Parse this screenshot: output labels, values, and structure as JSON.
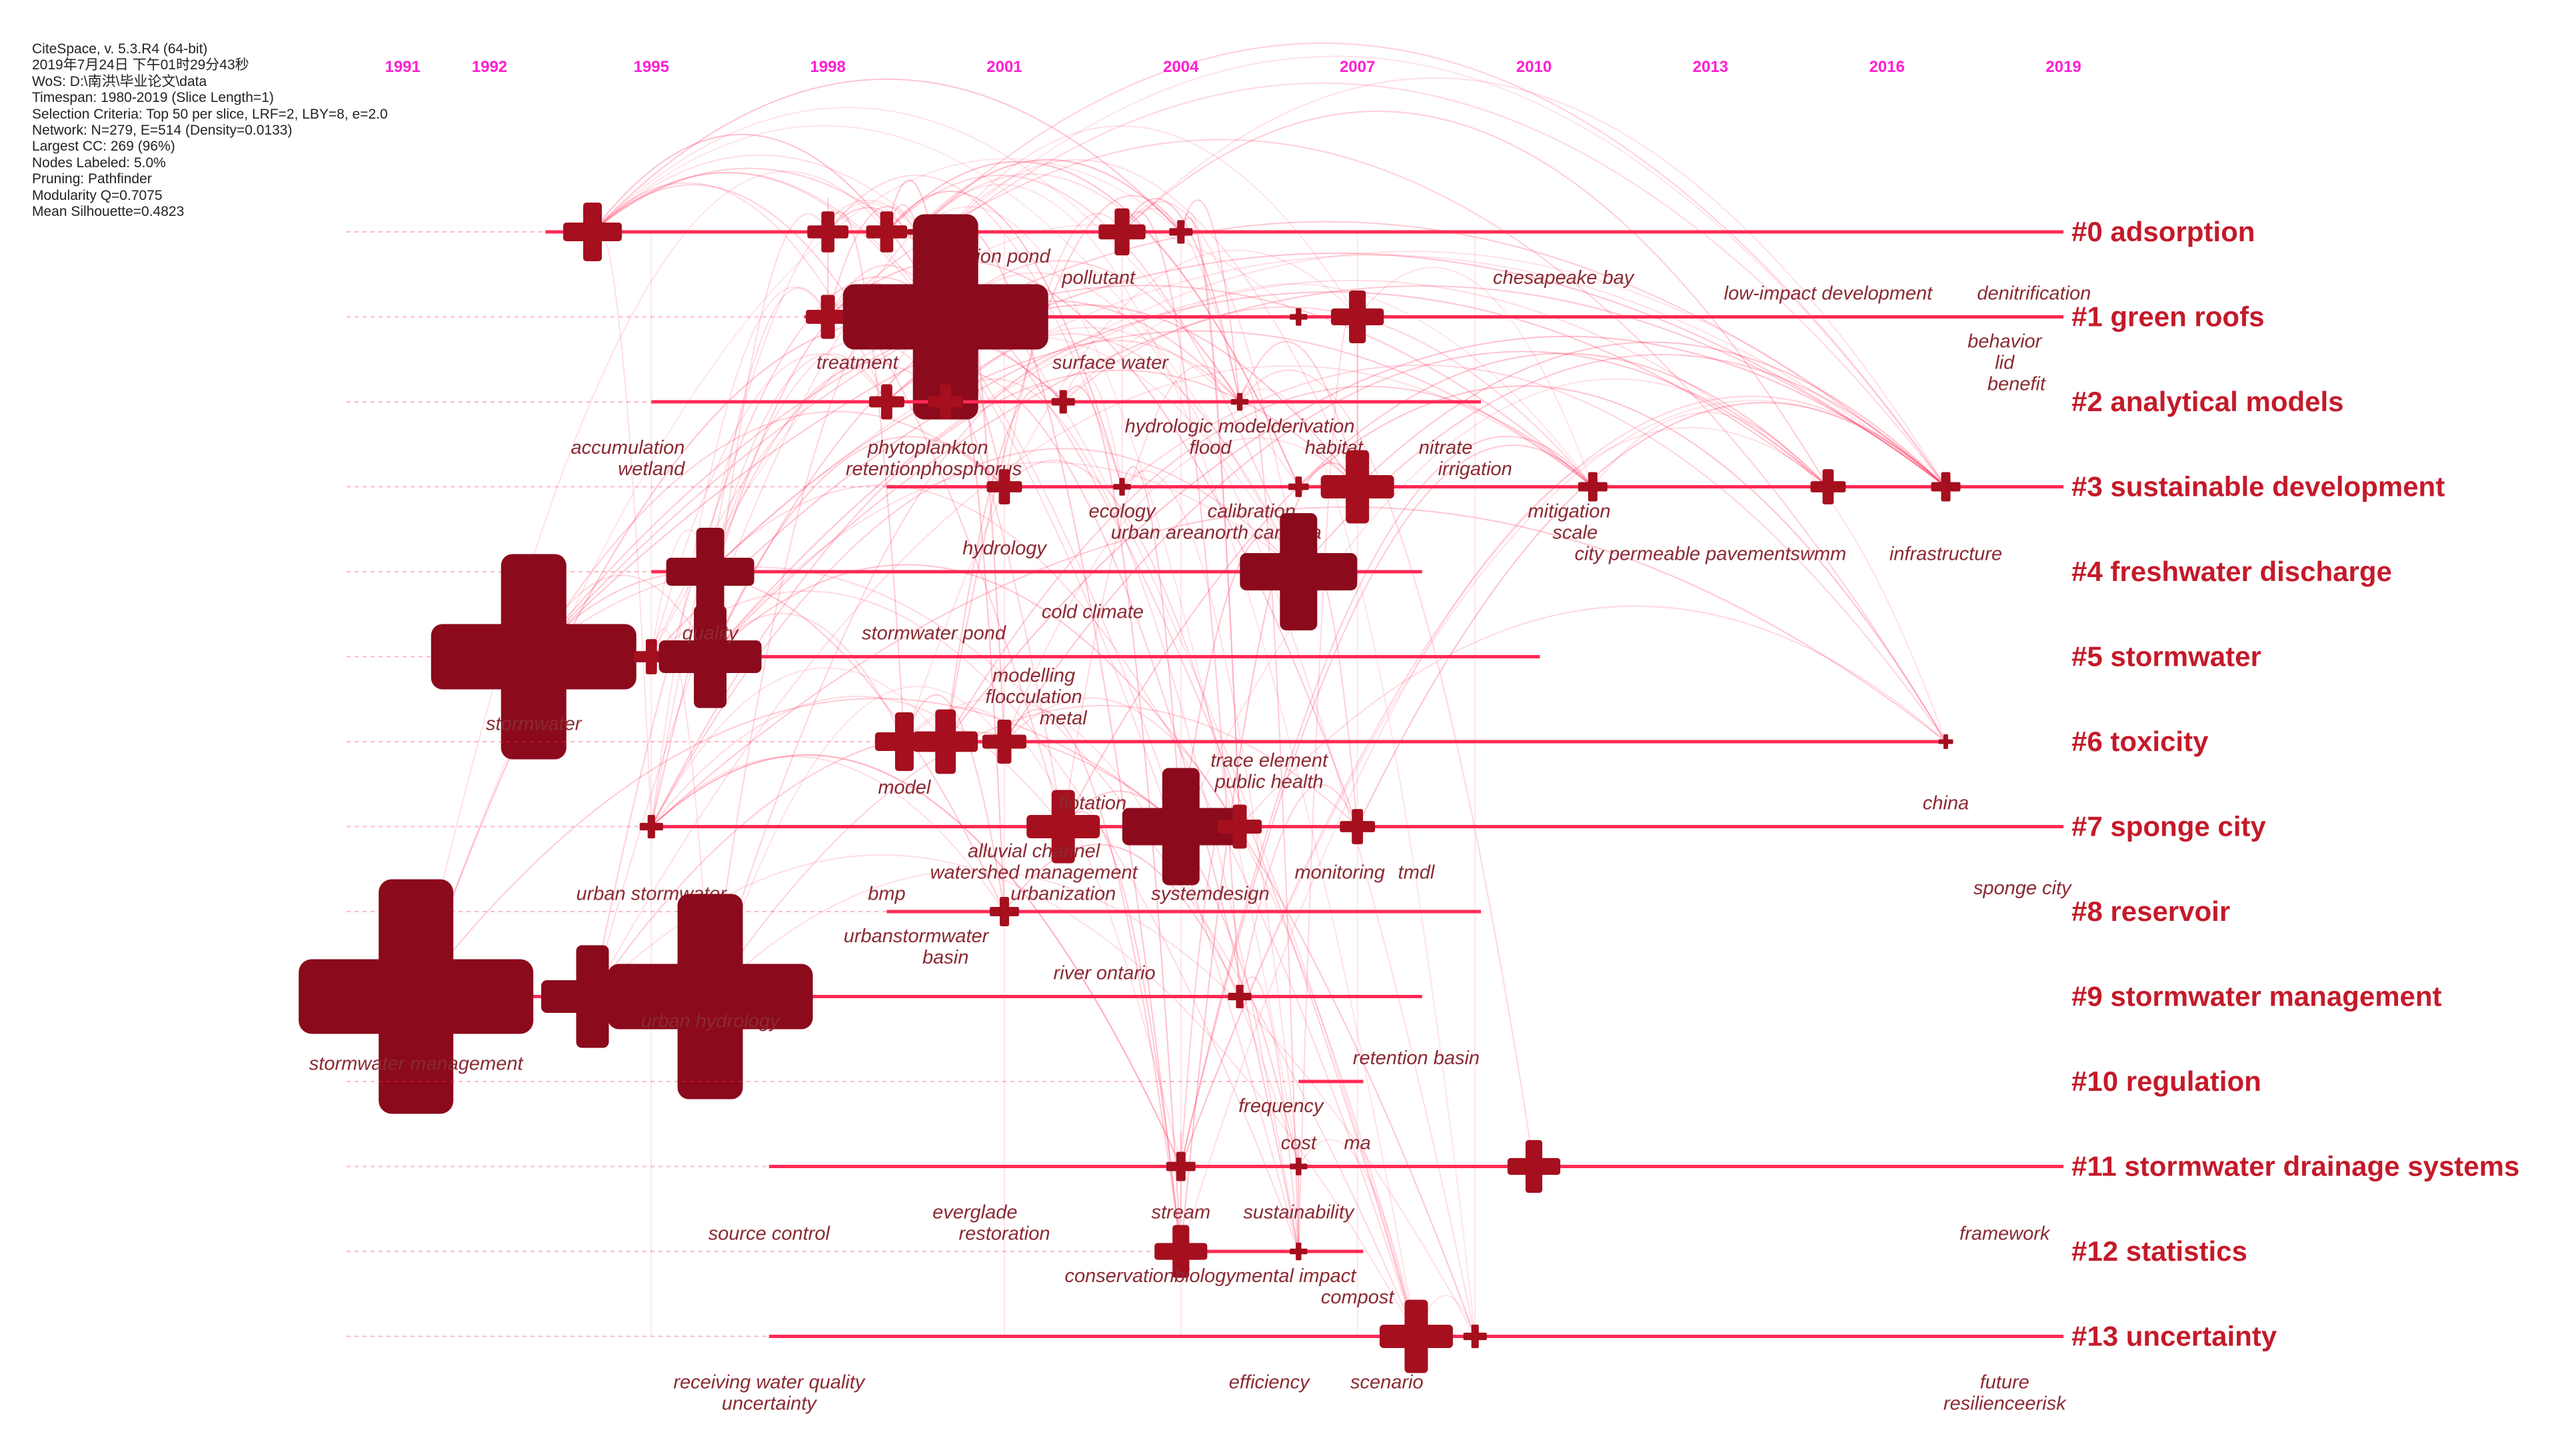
{
  "info_lines": [
    "CiteSpace, v. 5.3.R4 (64-bit)",
    "2019年7月24日 下午01时29分43秒",
    "WoS: D:\\南洪\\毕业论文\\data",
    "Timespan: 1980-2019 (Slice Length=1)",
    "Selection Criteria: Top 50 per slice, LRF=2, LBY=8, e=2.0",
    "Network: N=279, E=514 (Density=0.0133)",
    "Largest CC: 269 (96%)",
    "Nodes Labeled: 5.0%",
    "Pruning: Pathfinder",
    "Modularity Q=0.7075",
    "Mean Silhouette=0.4823"
  ],
  "timeline_years": [
    "1991",
    "1992",
    "1995",
    "1998",
    "2001",
    "2004",
    "2007",
    "2010",
    "2013",
    "2016",
    "2019"
  ],
  "colors": {
    "accent": "#ff2a55",
    "node": "#a50f1e",
    "year": "#ff1ed2",
    "label": "#c41a2a",
    "term": "#8a2a32"
  },
  "clusters": [
    {
      "id": 0,
      "label": "#0 adsorption",
      "start": 1993.2,
      "end": 2019,
      "nodes": [
        [
          1994.0,
          2
        ],
        [
          1998.0,
          1.4
        ],
        [
          1999.0,
          1.4
        ],
        [
          1999.5,
          0.6
        ],
        [
          2000.0,
          1.2
        ],
        [
          2003.0,
          1.6
        ],
        [
          2004.0,
          0.8
        ]
      ],
      "terms": [
        [
          "detection pond",
          2000.7,
          1
        ],
        [
          "pollutant",
          2002.6,
          2
        ],
        [
          "chesapeake bay",
          2010.5,
          2
        ]
      ]
    },
    {
      "id": 1,
      "label": "#1 green roofs",
      "start": 1997.6,
      "end": 2019,
      "nodes": [
        [
          1998.0,
          1.5
        ],
        [
          2000.0,
          7
        ],
        [
          2006.0,
          0.6
        ],
        [
          2007.0,
          1.8
        ]
      ],
      "terms": [
        [
          "low-impact development",
          2015.0,
          -1
        ],
        [
          "denitrification",
          2018.5,
          -1
        ],
        [
          "treatment",
          1998.5,
          2
        ],
        [
          "surface water",
          2002.8,
          2
        ],
        [
          "behavior",
          2018.0,
          1
        ],
        [
          "lid",
          2018.0,
          2
        ],
        [
          "benefit",
          2018.2,
          3
        ]
      ]
    },
    {
      "id": 2,
      "label": "#2 analytical models",
      "start": 1995.0,
      "end": 2009.1,
      "nodes": [
        [
          1999.0,
          1.2
        ],
        [
          2000.0,
          1.2
        ],
        [
          2002.0,
          0.8
        ],
        [
          2005.0,
          0.6
        ]
      ],
      "terms": [
        [
          "hydrologic modelderivation",
          2005.0,
          1
        ],
        [
          "accumulation",
          1994.6,
          2
        ],
        [
          "phytoplankton",
          1999.7,
          2
        ],
        [
          "flood",
          2004.5,
          2
        ],
        [
          "habitat",
          2006.6,
          2
        ],
        [
          "nitrate",
          2008.5,
          2
        ],
        [
          "wetland",
          1995.0,
          3
        ],
        [
          "retentionphosphorus",
          1999.8,
          3
        ],
        [
          "irrigation",
          2009.0,
          3
        ]
      ]
    },
    {
      "id": 3,
      "label": "#3 sustainable development",
      "start": 1999.0,
      "end": 2019,
      "nodes": [
        [
          2001.0,
          1.2
        ],
        [
          2003.0,
          0.6
        ],
        [
          2006.0,
          0.7
        ],
        [
          2007.0,
          2.5
        ],
        [
          2011.0,
          1
        ],
        [
          2015.0,
          1.2
        ],
        [
          2017.0,
          1
        ]
      ],
      "terms": [
        [
          "ecology",
          2003.0,
          1
        ],
        [
          "calibration",
          2005.2,
          1
        ],
        [
          "mitigation",
          2010.6,
          1
        ],
        [
          "urban areanorth carolina",
          2004.6,
          2
        ],
        [
          "scale",
          2010.7,
          2
        ],
        [
          "city permeable pavementswmm",
          2013.0,
          3
        ],
        [
          "infrastructure",
          2017.0,
          3
        ]
      ]
    },
    {
      "id": 4,
      "label": "#4 freshwater discharge",
      "start": 1995.0,
      "end": 2008.1,
      "nodes": [
        [
          1996.0,
          3
        ],
        [
          2006.0,
          4
        ]
      ],
      "terms": [
        [
          "hydrology",
          2001.0,
          -1
        ]
      ]
    },
    {
      "id": 5,
      "label": "#5 stormwater",
      "start": 1992.0,
      "end": 2010.1,
      "nodes": [
        [
          1993.0,
          7
        ],
        [
          1995.0,
          1.2
        ],
        [
          1996.0,
          3.5
        ]
      ],
      "terms": [
        [
          "cold climate",
          2002.5,
          -2
        ],
        [
          "quality",
          1996.0,
          -1
        ],
        [
          "stormwater pond",
          1999.8,
          -1
        ],
        [
          "stormwater",
          1993.0,
          3
        ]
      ]
    },
    {
      "id": 6,
      "label": "#6 toxicity",
      "start": 1998.8,
      "end": 2017.1,
      "nodes": [
        [
          1999.3,
          2
        ],
        [
          2000.0,
          2.2
        ],
        [
          2001.0,
          1.5
        ],
        [
          2017.0,
          0.5
        ]
      ],
      "terms": [
        [
          "modelling",
          2001.5,
          -3
        ],
        [
          "flocculation",
          2001.5,
          -2
        ],
        [
          "metal",
          2002.0,
          -1
        ],
        [
          "model",
          1999.3,
          2
        ]
      ]
    },
    {
      "id": 7,
      "label": "#7 sponge city",
      "start": 1995.0,
      "end": 2019,
      "nodes": [
        [
          1995.0,
          0.8
        ],
        [
          2002.0,
          2.5
        ],
        [
          2004.0,
          4
        ],
        [
          2005.0,
          1.5
        ],
        [
          2007.0,
          1.2
        ]
      ],
      "terms": [
        [
          "trace element",
          2005.5,
          -3
        ],
        [
          "public health",
          2005.5,
          -2
        ],
        [
          "china",
          2017.0,
          -1
        ],
        [
          "flotation",
          2002.5,
          -1
        ],
        [
          "alluvial channel",
          2001.5,
          1
        ],
        [
          "watershed management",
          2001.5,
          2
        ],
        [
          "monitoring",
          2006.7,
          2
        ],
        [
          "tmdl",
          2008.0,
          2
        ],
        [
          "bmp",
          1999.0,
          3
        ],
        [
          "urbanization",
          2002.0,
          3
        ],
        [
          "systemdesign",
          2004.5,
          3
        ],
        [
          "urban stormwater",
          1995.0,
          3
        ]
      ]
    },
    {
      "id": 8,
      "label": "#8 reservoir",
      "start": 1999.0,
      "end": 2009.1,
      "nodes": [
        [
          2001.0,
          1
        ]
      ],
      "terms": [
        [
          "sponge city",
          2018.3,
          -1
        ],
        [
          "urbanstormwater",
          1999.5,
          1
        ],
        [
          "basin",
          2000.0,
          2
        ]
      ]
    },
    {
      "id": 9,
      "label": "#9 stormwater management",
      "start": 1990.0,
      "end": 2008.1,
      "nodes": [
        [
          1991.0,
          8
        ],
        [
          1994.0,
          3.5
        ],
        [
          1996.0,
          7
        ],
        [
          2005.0,
          0.8
        ]
      ],
      "terms": [
        [
          "river ontario",
          2002.7,
          -1
        ],
        [
          "urban hydrology",
          1996.0,
          1
        ],
        [
          "stormwater management",
          1991.0,
          3
        ]
      ]
    },
    {
      "id": 10,
      "label": "#10 regulation",
      "start": 2006.0,
      "end": 2007.1,
      "nodes": [],
      "terms": [
        [
          "retention basin",
          2008.0,
          -1
        ],
        [
          "frequency",
          2005.7,
          1
        ]
      ]
    },
    {
      "id": 11,
      "label": "#11 stormwater drainage systems",
      "start": 1997.0,
      "end": 2019,
      "nodes": [
        [
          2004.0,
          1
        ],
        [
          2006.0,
          0.6
        ],
        [
          2010.0,
          1.8
        ]
      ],
      "terms": [
        [
          "cost",
          2006.0,
          -1
        ],
        [
          "ma",
          2007.0,
          -1
        ],
        [
          "everglade",
          2000.5,
          2
        ],
        [
          "stream",
          2004.0,
          2
        ],
        [
          "sustainability",
          2006.0,
          2
        ],
        [
          "source control",
          1997.0,
          3
        ],
        [
          "restoration",
          2001.0,
          3
        ],
        [
          "framework",
          2018.0,
          3
        ]
      ]
    },
    {
      "id": 12,
      "label": "#12 statistics",
      "start": 2004.0,
      "end": 2007.1,
      "nodes": [
        [
          2004.0,
          1.8
        ],
        [
          2006.0,
          0.6
        ]
      ],
      "terms": [
        [
          "conservationbiologymental impact",
          2004.5,
          1
        ],
        [
          "compost",
          2007.0,
          2
        ]
      ]
    },
    {
      "id": 13,
      "label": "#13 uncertainty",
      "start": 1997.0,
      "end": 2019,
      "nodes": [
        [
          2008.0,
          2.5
        ],
        [
          2009.0,
          0.8
        ]
      ],
      "terms": [
        [
          "receiving water quality",
          1997.0,
          2
        ],
        [
          "efficiency",
          2005.5,
          2
        ],
        [
          "scenario",
          2007.5,
          2
        ],
        [
          "future",
          2018.0,
          2
        ],
        [
          "uncertainty",
          1997.0,
          3
        ],
        [
          "resilienceerisk",
          2018.0,
          3
        ]
      ]
    }
  ]
}
